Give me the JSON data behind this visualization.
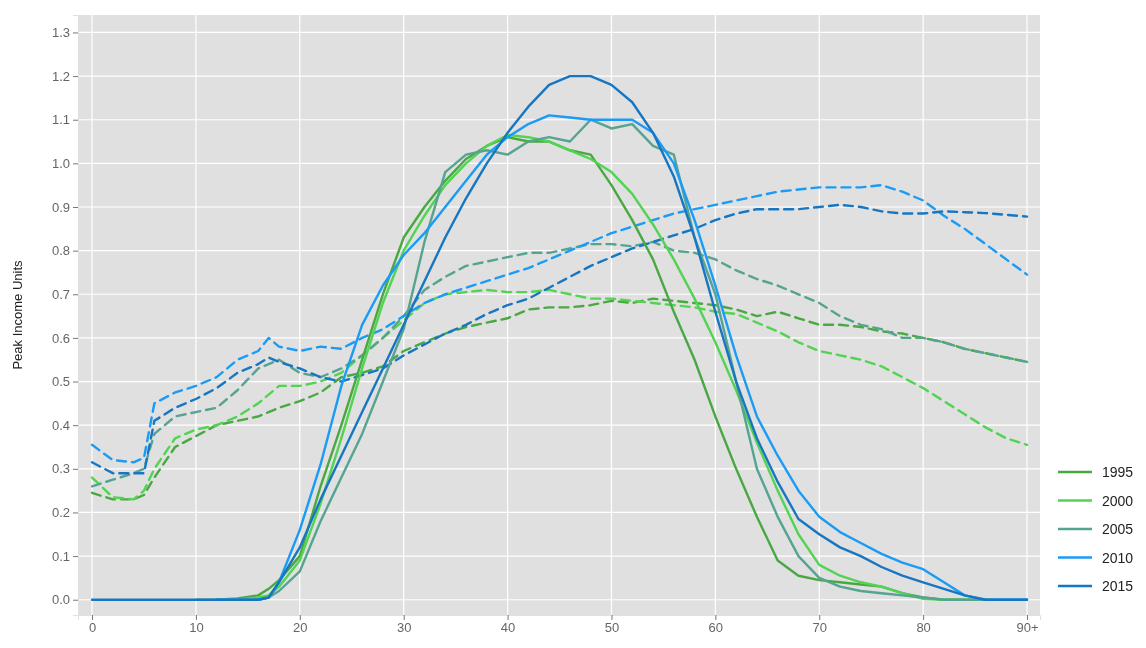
{
  "chart_data": {
    "type": "line",
    "ylabel": "Peak Income Units",
    "x": [
      0,
      2,
      4,
      5,
      6,
      8,
      10,
      12,
      14,
      16,
      17,
      18,
      20,
      22,
      24,
      26,
      28,
      30,
      32,
      34,
      36,
      38,
      40,
      42,
      44,
      46,
      48,
      50,
      52,
      54,
      56,
      58,
      60,
      62,
      64,
      66,
      68,
      70,
      72,
      74,
      76,
      78,
      80,
      82,
      84,
      86,
      88,
      90
    ],
    "xlim": [
      -1.35,
      91.25
    ],
    "xticks": [
      0,
      10,
      20,
      30,
      40,
      50,
      60,
      70,
      80,
      {
        "value": 90,
        "label": "90+"
      }
    ],
    "ylim": [
      -0.035,
      1.34
    ],
    "yticks": [
      {
        "value": 0,
        "label": "0.0"
      },
      0.1,
      0.2,
      0.3,
      0.4,
      0.5,
      0.6,
      0.7,
      0.8,
      0.9,
      {
        "value": 1,
        "label": "1.0"
      },
      1.1,
      1.2,
      1.3
    ],
    "grid": true,
    "legend": "right",
    "marker": "none",
    "series": [
      {
        "color": "#4aa843",
        "line_style": "dashed",
        "values": [
          0.245,
          0.23,
          0.23,
          0.24,
          0.28,
          0.35,
          0.375,
          0.4,
          0.41,
          0.42,
          0.43,
          0.44,
          0.455,
          0.475,
          0.51,
          0.52,
          0.535,
          0.57,
          0.59,
          0.61,
          0.625,
          0.635,
          0.645,
          0.665,
          0.67,
          0.67,
          0.675,
          0.685,
          0.68,
          0.69,
          0.685,
          0.68,
          0.675,
          0.665,
          0.65,
          0.66,
          0.645,
          0.63,
          0.63,
          0.625,
          0.615,
          0.61,
          0.6,
          0.59,
          0.575,
          0.565,
          0.555,
          0.545
        ]
      },
      {
        "color": "#52d352",
        "line_style": "dashed",
        "values": [
          0.28,
          0.235,
          0.23,
          0.25,
          0.3,
          0.37,
          0.39,
          0.4,
          0.42,
          0.45,
          0.47,
          0.49,
          0.49,
          0.5,
          0.52,
          0.56,
          0.6,
          0.64,
          0.68,
          0.7,
          0.705,
          0.71,
          0.705,
          0.705,
          0.71,
          0.7,
          0.69,
          0.69,
          0.685,
          0.68,
          0.675,
          0.67,
          0.66,
          0.655,
          0.635,
          0.615,
          0.59,
          0.57,
          0.56,
          0.55,
          0.535,
          0.51,
          0.485,
          0.455,
          0.425,
          0.395,
          0.37,
          0.355
        ]
      },
      {
        "color": "#55a391",
        "line_style": "dashed",
        "values": [
          0.26,
          0.275,
          0.29,
          0.3,
          0.38,
          0.42,
          0.43,
          0.44,
          0.48,
          0.53,
          0.54,
          0.55,
          0.52,
          0.51,
          0.53,
          0.56,
          0.6,
          0.65,
          0.71,
          0.74,
          0.765,
          0.775,
          0.785,
          0.795,
          0.795,
          0.805,
          0.815,
          0.815,
          0.81,
          0.82,
          0.8,
          0.795,
          0.78,
          0.755,
          0.735,
          0.72,
          0.7,
          0.68,
          0.65,
          0.63,
          0.62,
          0.6,
          0.6,
          0.59,
          0.575,
          0.565,
          0.555,
          0.545
        ]
      },
      {
        "color": "#1a9bf5",
        "line_style": "dashed",
        "values": [
          0.355,
          0.32,
          0.315,
          0.325,
          0.45,
          0.475,
          0.49,
          0.51,
          0.55,
          0.57,
          0.6,
          0.58,
          0.57,
          0.58,
          0.575,
          0.6,
          0.62,
          0.65,
          0.68,
          0.7,
          0.715,
          0.73,
          0.745,
          0.76,
          0.78,
          0.8,
          0.82,
          0.84,
          0.855,
          0.87,
          0.885,
          0.895,
          0.905,
          0.915,
          0.925,
          0.935,
          0.94,
          0.945,
          0.945,
          0.945,
          0.95,
          0.935,
          0.915,
          0.88,
          0.85,
          0.815,
          0.78,
          0.745
        ]
      },
      {
        "color": "#1676c2",
        "line_style": "dashed",
        "values": [
          0.315,
          0.29,
          0.29,
          0.29,
          0.41,
          0.44,
          0.46,
          0.485,
          0.52,
          0.54,
          0.555,
          0.545,
          0.53,
          0.51,
          0.5,
          0.515,
          0.53,
          0.56,
          0.585,
          0.61,
          0.63,
          0.655,
          0.675,
          0.69,
          0.715,
          0.74,
          0.765,
          0.785,
          0.805,
          0.82,
          0.835,
          0.85,
          0.87,
          0.885,
          0.895,
          0.895,
          0.895,
          0.9,
          0.905,
          0.9,
          0.89,
          0.885,
          0.885,
          0.89,
          0.888,
          0.886,
          0.882,
          0.878
        ]
      },
      {
        "name": "1995",
        "color": "#4aa843",
        "line_style": "solid",
        "values": [
          null,
          null,
          null,
          null,
          null,
          null,
          null,
          0,
          0.003,
          0.01,
          0.025,
          0.045,
          0.1,
          0.26,
          0.4,
          0.55,
          0.7,
          0.83,
          0.9,
          0.96,
          1.01,
          1.04,
          1.06,
          1.05,
          1.05,
          1.03,
          1.02,
          0.95,
          0.87,
          0.78,
          0.66,
          0.55,
          0.42,
          0.3,
          0.19,
          0.09,
          0.055,
          0.045,
          0.04,
          0.035,
          0.03,
          0.015,
          0.005,
          0,
          0,
          0,
          null,
          null
        ]
      },
      {
        "name": "2000",
        "color": "#52d352",
        "line_style": "solid",
        "values": [
          null,
          null,
          null,
          null,
          null,
          null,
          null,
          0,
          0,
          0.005,
          0.01,
          0.03,
          0.09,
          0.22,
          0.37,
          0.53,
          0.68,
          0.8,
          0.88,
          0.95,
          1.0,
          1.04,
          1.065,
          1.06,
          1.05,
          1.03,
          1.01,
          0.98,
          0.93,
          0.86,
          0.78,
          0.69,
          0.59,
          0.48,
          0.36,
          0.25,
          0.15,
          0.08,
          0.055,
          0.04,
          0.03,
          0.015,
          0.002,
          0,
          0,
          null,
          null,
          null
        ]
      },
      {
        "name": "2005",
        "color": "#55a391",
        "line_style": "solid",
        "values": [
          null,
          null,
          null,
          null,
          null,
          null,
          0,
          0,
          0,
          0,
          0.005,
          0.02,
          0.065,
          0.18,
          0.28,
          0.38,
          0.5,
          0.62,
          0.82,
          0.98,
          1.02,
          1.03,
          1.02,
          1.05,
          1.06,
          1.05,
          1.1,
          1.08,
          1.09,
          1.04,
          1.02,
          0.83,
          0.7,
          0.5,
          0.3,
          0.19,
          0.1,
          0.05,
          0.03,
          0.02,
          0.015,
          0.01,
          0.005,
          0,
          0,
          0,
          0,
          0
        ]
      },
      {
        "name": "2010",
        "color": "#1a9bf5",
        "line_style": "solid",
        "values": [
          null,
          null,
          null,
          null,
          null,
          null,
          null,
          0,
          0,
          0,
          0.005,
          0.04,
          0.16,
          0.31,
          0.49,
          0.63,
          0.72,
          0.79,
          0.84,
          0.9,
          0.96,
          1.02,
          1.06,
          1.09,
          1.11,
          1.105,
          1.1,
          1.1,
          1.1,
          1.07,
          1.0,
          0.87,
          0.72,
          0.56,
          0.42,
          0.33,
          0.25,
          0.19,
          0.155,
          0.13,
          0.105,
          0.085,
          0.07,
          0.04,
          0.01,
          0,
          0,
          0
        ]
      },
      {
        "name": "2015",
        "color": "#1676c2",
        "line_style": "solid",
        "values": [
          0,
          0,
          0,
          0,
          0,
          0,
          0,
          0,
          0,
          0,
          0.005,
          0.04,
          0.12,
          0.23,
          0.33,
          0.43,
          0.53,
          0.63,
          0.73,
          0.83,
          0.92,
          1.0,
          1.07,
          1.13,
          1.18,
          1.2,
          1.2,
          1.18,
          1.14,
          1.07,
          0.97,
          0.83,
          0.66,
          0.5,
          0.37,
          0.27,
          0.185,
          0.15,
          0.12,
          0.1,
          0.075,
          0.055,
          0.04,
          0.025,
          0.01,
          0,
          0,
          0
        ]
      }
    ]
  }
}
